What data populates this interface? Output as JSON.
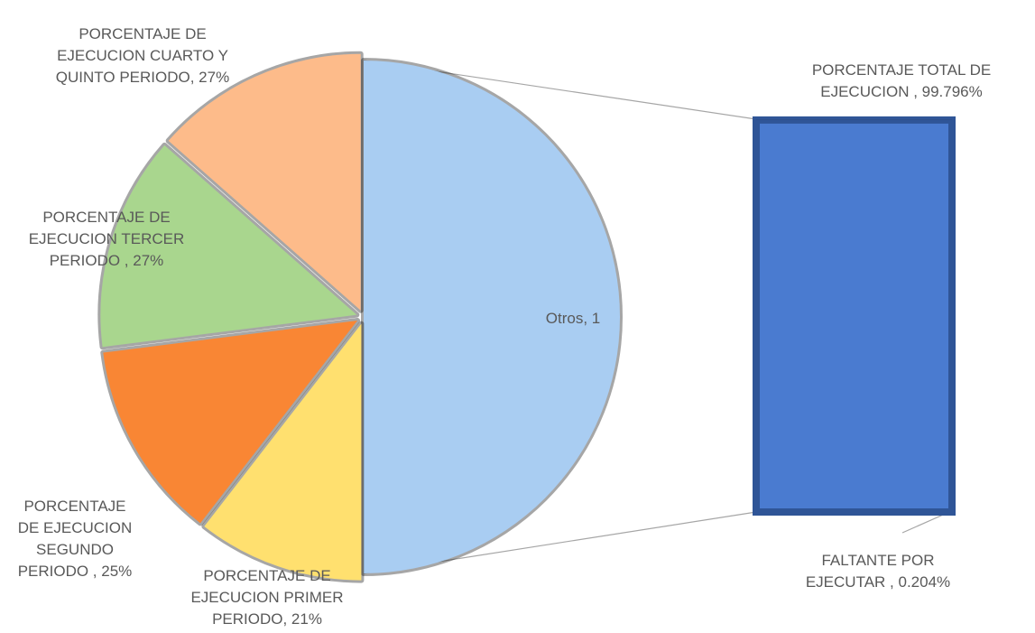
{
  "chart_data": {
    "type": "pie-of-bar",
    "pie": {
      "values": [
        1,
        0.21,
        0.25,
        0.27,
        0.27
      ],
      "labels": [
        "Otros, 1",
        "PORCENTAJE DE EJECUCION PRIMER PERIODO, 21%",
        "PORCENTAJE DE EJECUCION SEGUNDO PERIODO , 25%",
        "PORCENTAJE DE EJECUCION TERCER PERIODO , 27%",
        "PORCENTAJE DE EJECUCION CUARTO Y QUINTO PERIODO, 27%"
      ],
      "colors": [
        "#a9cdf2",
        "#ffe06f",
        "#f98634",
        "#a9d68e",
        "#fdbb8a"
      ]
    },
    "bar": {
      "values": [
        0.99796,
        0.00204
      ],
      "labels": [
        "PORCENTAJE TOTAL DE EJECUCION , 99.796%",
        "FALTANTE POR EJECUTAR , 0.204%"
      ],
      "colors": [
        "#4a7bd0",
        "#2e4f8a"
      ]
    }
  }
}
